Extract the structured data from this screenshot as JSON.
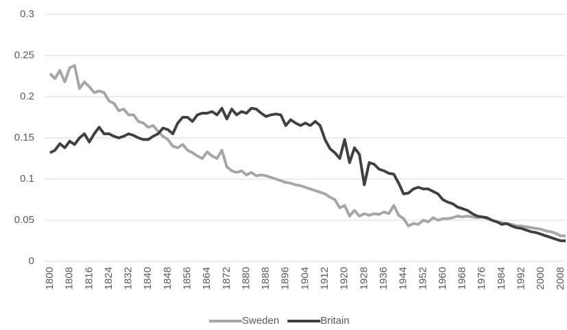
{
  "chart_data": {
    "type": "line",
    "x": [
      1800,
      1802,
      1804,
      1806,
      1808,
      1810,
      1812,
      1814,
      1816,
      1818,
      1820,
      1822,
      1824,
      1826,
      1828,
      1830,
      1832,
      1834,
      1836,
      1838,
      1840,
      1842,
      1844,
      1846,
      1848,
      1850,
      1852,
      1854,
      1856,
      1858,
      1860,
      1862,
      1864,
      1866,
      1868,
      1870,
      1872,
      1874,
      1876,
      1878,
      1880,
      1882,
      1884,
      1886,
      1888,
      1890,
      1892,
      1894,
      1896,
      1898,
      1900,
      1902,
      1904,
      1906,
      1908,
      1910,
      1912,
      1914,
      1916,
      1918,
      1920,
      1922,
      1924,
      1926,
      1928,
      1930,
      1932,
      1934,
      1936,
      1938,
      1940,
      1942,
      1944,
      1946,
      1948,
      1950,
      1952,
      1954,
      1956,
      1958,
      1960,
      1962,
      1964,
      1966,
      1968,
      1970,
      1972,
      1974,
      1976,
      1978,
      1980,
      1982,
      1984,
      1986,
      1988,
      1990,
      1992,
      1994,
      1996,
      1998,
      2000,
      2002,
      2004,
      2006,
      2008,
      2010
    ],
    "series": [
      {
        "name": "Sweden",
        "color": "#a6a6a6",
        "values": [
          0.228,
          0.222,
          0.232,
          0.218,
          0.235,
          0.238,
          0.21,
          0.218,
          0.212,
          0.205,
          0.207,
          0.205,
          0.195,
          0.192,
          0.183,
          0.185,
          0.178,
          0.178,
          0.17,
          0.168,
          0.163,
          0.165,
          0.158,
          0.152,
          0.148,
          0.14,
          0.138,
          0.142,
          0.135,
          0.132,
          0.128,
          0.125,
          0.133,
          0.128,
          0.125,
          0.135,
          0.115,
          0.11,
          0.108,
          0.11,
          0.105,
          0.108,
          0.104,
          0.105,
          0.104,
          0.102,
          0.1,
          0.098,
          0.096,
          0.095,
          0.093,
          0.092,
          0.09,
          0.088,
          0.086,
          0.084,
          0.082,
          0.078,
          0.075,
          0.065,
          0.068,
          0.055,
          0.062,
          0.055,
          0.058,
          0.056,
          0.058,
          0.057,
          0.06,
          0.058,
          0.068,
          0.056,
          0.052,
          0.043,
          0.046,
          0.045,
          0.05,
          0.048,
          0.053,
          0.05,
          0.052,
          0.052,
          0.053,
          0.055,
          0.054,
          0.055,
          0.054,
          0.053,
          0.054,
          0.052,
          0.05,
          0.048,
          0.047,
          0.046,
          0.045,
          0.043,
          0.043,
          0.042,
          0.041,
          0.04,
          0.039,
          0.037,
          0.036,
          0.034,
          0.031,
          0.031
        ]
      },
      {
        "name": "Britain",
        "color": "#404040",
        "values": [
          0.132,
          0.135,
          0.143,
          0.138,
          0.146,
          0.142,
          0.15,
          0.155,
          0.145,
          0.155,
          0.163,
          0.155,
          0.155,
          0.152,
          0.15,
          0.152,
          0.155,
          0.153,
          0.15,
          0.148,
          0.148,
          0.152,
          0.155,
          0.162,
          0.16,
          0.155,
          0.168,
          0.175,
          0.175,
          0.17,
          0.178,
          0.18,
          0.18,
          0.182,
          0.178,
          0.186,
          0.173,
          0.185,
          0.178,
          0.182,
          0.18,
          0.186,
          0.185,
          0.18,
          0.176,
          0.178,
          0.179,
          0.178,
          0.165,
          0.172,
          0.168,
          0.165,
          0.168,
          0.165,
          0.17,
          0.165,
          0.148,
          0.137,
          0.132,
          0.125,
          0.148,
          0.12,
          0.138,
          0.13,
          0.093,
          0.12,
          0.118,
          0.112,
          0.11,
          0.107,
          0.106,
          0.095,
          0.082,
          0.083,
          0.088,
          0.09,
          0.088,
          0.088,
          0.085,
          0.082,
          0.075,
          0.072,
          0.07,
          0.066,
          0.064,
          0.062,
          0.058,
          0.055,
          0.054,
          0.053,
          0.05,
          0.048,
          0.045,
          0.046,
          0.043,
          0.041,
          0.04,
          0.038,
          0.036,
          0.035,
          0.033,
          0.031,
          0.029,
          0.027,
          0.025,
          0.025
        ]
      }
    ],
    "xlim": [
      1800,
      2010
    ],
    "xticks": [
      1800,
      1808,
      1816,
      1824,
      1832,
      1840,
      1848,
      1856,
      1864,
      1872,
      1880,
      1888,
      1896,
      1904,
      1912,
      1920,
      1928,
      1936,
      1944,
      1952,
      1960,
      1968,
      1976,
      1984,
      1992,
      2000,
      2008
    ],
    "ylim": [
      0,
      0.3
    ],
    "yticks": [
      0,
      0.05,
      0.1,
      0.15,
      0.2,
      0.25,
      0.3
    ],
    "grid": true,
    "legend": "bottom"
  }
}
